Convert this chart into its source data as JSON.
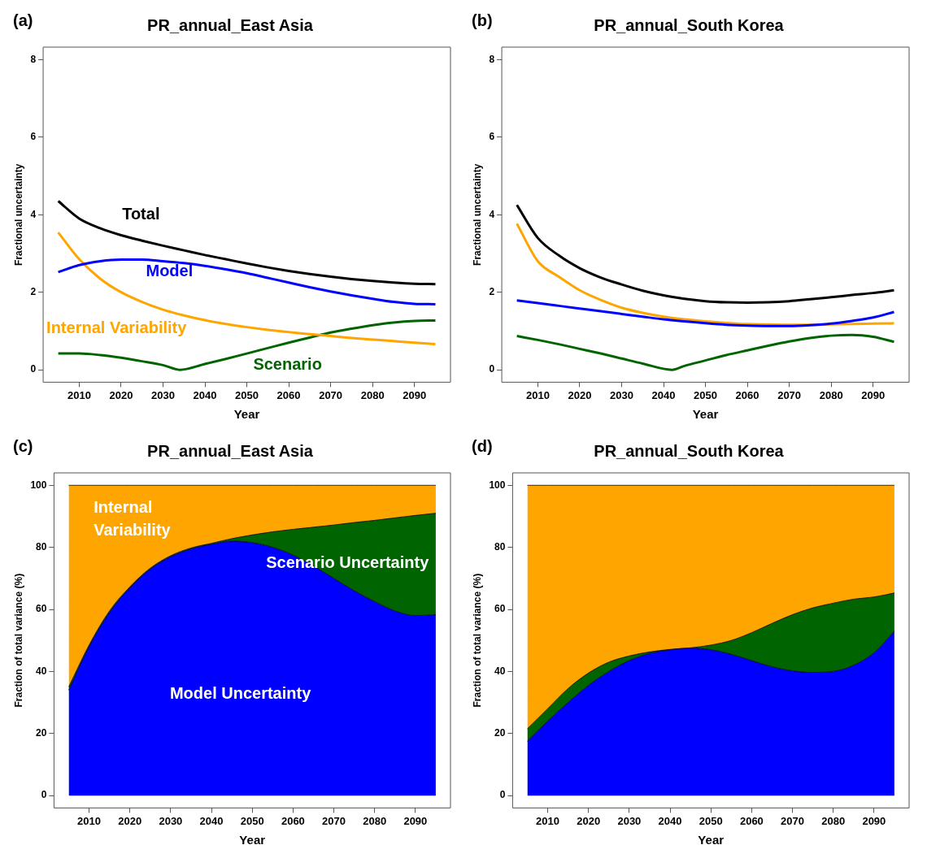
{
  "chart_data": [
    {
      "type": "line",
      "title": "PR_annual_East Asia",
      "annotations": [
        "(a)"
      ],
      "xlabel": "Year",
      "ylabel": "Fractional uncertainty",
      "x": [
        2005,
        2010,
        2015,
        2020,
        2025,
        2030,
        2035,
        2040,
        2045,
        2050,
        2055,
        2060,
        2065,
        2070,
        2075,
        2080,
        2085,
        2090,
        2095
      ],
      "xlim": [
        2001.4,
        2098.6
      ],
      "xticks": [
        2010,
        2020,
        2030,
        2040,
        2050,
        2060,
        2070,
        2080,
        2090
      ],
      "ylim": [
        -0.32,
        8.32
      ],
      "yticks": [
        0,
        2,
        4,
        6,
        8
      ],
      "grid": false,
      "legend": false,
      "series": [
        {
          "name": "Total",
          "color": "#000000",
          "values": [
            4.35,
            3.9,
            3.65,
            3.47,
            3.33,
            3.2,
            3.08,
            2.96,
            2.85,
            2.74,
            2.64,
            2.55,
            2.47,
            2.4,
            2.34,
            2.29,
            2.25,
            2.22,
            2.21
          ]
        },
        {
          "name": "Model",
          "color": "#0000ff",
          "values": [
            2.52,
            2.7,
            2.8,
            2.84,
            2.84,
            2.8,
            2.75,
            2.68,
            2.59,
            2.49,
            2.37,
            2.25,
            2.13,
            2.02,
            1.92,
            1.83,
            1.75,
            1.7,
            1.69
          ]
        },
        {
          "name": "Internal Variability",
          "color": "#ffa500",
          "values": [
            3.54,
            2.85,
            2.35,
            2.0,
            1.75,
            1.55,
            1.4,
            1.28,
            1.18,
            1.1,
            1.03,
            0.97,
            0.92,
            0.87,
            0.82,
            0.78,
            0.74,
            0.7,
            0.66
          ]
        },
        {
          "name": "Scenario",
          "color": "#006400",
          "x": [
            2005,
            2010,
            2015,
            2020,
            2025,
            2030,
            2034,
            2040,
            2045,
            2050,
            2055,
            2060,
            2065,
            2070,
            2075,
            2080,
            2085,
            2090,
            2095
          ],
          "values": [
            0.42,
            0.42,
            0.38,
            0.31,
            0.22,
            0.12,
            0,
            0.15,
            0.28,
            0.42,
            0.56,
            0.7,
            0.83,
            0.96,
            1.06,
            1.15,
            1.22,
            1.26,
            1.27
          ]
        }
      ]
    },
    {
      "type": "line",
      "title": "PR_annual_South Korea",
      "annotations": [
        "(b)"
      ],
      "xlabel": "Year",
      "ylabel": "Fractional uncertainty",
      "x": [
        2005,
        2010,
        2015,
        2020,
        2025,
        2030,
        2035,
        2040,
        2045,
        2050,
        2055,
        2060,
        2065,
        2070,
        2075,
        2080,
        2085,
        2090,
        2095
      ],
      "xlim": [
        2001.4,
        2098.6
      ],
      "xticks": [
        2010,
        2020,
        2030,
        2040,
        2050,
        2060,
        2070,
        2080,
        2090
      ],
      "ylim": [
        -0.32,
        8.32
      ],
      "yticks": [
        0,
        2,
        4,
        6,
        8
      ],
      "grid": false,
      "legend": false,
      "series": [
        {
          "color": "#000000",
          "values": [
            4.25,
            3.4,
            2.95,
            2.62,
            2.38,
            2.2,
            2.04,
            1.92,
            1.83,
            1.77,
            1.74,
            1.73,
            1.74,
            1.77,
            1.82,
            1.87,
            1.93,
            1.98,
            2.05
          ]
        },
        {
          "color": "#0000ff",
          "values": [
            1.79,
            1.72,
            1.65,
            1.58,
            1.51,
            1.44,
            1.37,
            1.3,
            1.25,
            1.2,
            1.16,
            1.14,
            1.13,
            1.13,
            1.15,
            1.19,
            1.26,
            1.35,
            1.49
          ]
        },
        {
          "color": "#ffa500",
          "values": [
            3.77,
            2.8,
            2.4,
            2.05,
            1.8,
            1.6,
            1.47,
            1.37,
            1.3,
            1.25,
            1.21,
            1.18,
            1.17,
            1.16,
            1.16,
            1.17,
            1.18,
            1.19,
            1.2
          ]
        },
        {
          "color": "#006400",
          "x": [
            2005,
            2010,
            2015,
            2020,
            2025,
            2030,
            2035,
            2042,
            2045,
            2050,
            2055,
            2060,
            2065,
            2070,
            2075,
            2080,
            2085,
            2090,
            2095
          ],
          "values": [
            0.87,
            0.77,
            0.66,
            0.54,
            0.42,
            0.29,
            0.16,
            0,
            0.1,
            0.24,
            0.38,
            0.5,
            0.62,
            0.73,
            0.82,
            0.88,
            0.9,
            0.85,
            0.72
          ]
        }
      ]
    },
    {
      "type": "area",
      "stacked": true,
      "title": "PR_annual_East Asia",
      "annotations": [
        "(c)"
      ],
      "xlabel": "Year",
      "ylabel": "Fraction of total variance (%)",
      "x": [
        2005,
        2010,
        2015,
        2020,
        2025,
        2030,
        2035,
        2040,
        2045,
        2050,
        2055,
        2060,
        2065,
        2070,
        2075,
        2080,
        2085,
        2090,
        2095
      ],
      "xlim": [
        2001.4,
        2098.6
      ],
      "xticks": [
        2010,
        2020,
        2030,
        2040,
        2050,
        2060,
        2070,
        2080,
        2090
      ],
      "ylim": [
        -4,
        104
      ],
      "yticks": [
        0,
        20,
        40,
        60,
        80,
        100
      ],
      "grid": false,
      "legend": false,
      "series": [
        {
          "name": "Model Uncertainty",
          "color": "#0000ff",
          "values": [
            34,
            48,
            59,
            67,
            73,
            77,
            79.5,
            81,
            82,
            81.5,
            80,
            77.5,
            74,
            70,
            66,
            62.5,
            59.5,
            58,
            58.3
          ]
        },
        {
          "name": "Scenario Uncertainty",
          "color": "#006400",
          "values": [
            1,
            0.5,
            0.5,
            0.3,
            0.3,
            0.3,
            0.3,
            0.3,
            0.8,
            2.5,
            5,
            8.3,
            12.5,
            17.2,
            22,
            26.2,
            30,
            32.3,
            32.7
          ]
        },
        {
          "name": "Internal Variability",
          "color": "#ffa500",
          "values": [
            65,
            51.5,
            40.5,
            32.7,
            26.7,
            22.7,
            20.2,
            18.7,
            17.2,
            16,
            15,
            14.2,
            13.5,
            12.8,
            12,
            11.3,
            10.5,
            9.7,
            9
          ]
        }
      ]
    },
    {
      "type": "area",
      "stacked": true,
      "title": "PR_annual_South Korea",
      "annotations": [
        "(d)"
      ],
      "xlabel": "Year",
      "ylabel": "Fraction of total variance (%)",
      "x": [
        2005,
        2010,
        2015,
        2020,
        2025,
        2030,
        2035,
        2040,
        2045,
        2050,
        2055,
        2060,
        2065,
        2070,
        2075,
        2080,
        2085,
        2090,
        2095
      ],
      "xlim": [
        2001.4,
        2098.6
      ],
      "xticks": [
        2010,
        2020,
        2030,
        2040,
        2050,
        2060,
        2070,
        2080,
        2090
      ],
      "ylim": [
        -4,
        104
      ],
      "yticks": [
        0,
        20,
        40,
        60,
        80,
        100
      ],
      "grid": false,
      "legend": false,
      "series": [
        {
          "color": "#0000ff",
          "values": [
            17.5,
            24,
            30,
            35.5,
            40,
            43.5,
            45.8,
            47,
            47.5,
            47,
            45.5,
            43.5,
            41.5,
            40.2,
            39.7,
            40,
            42,
            46,
            53
          ]
        },
        {
          "color": "#006400",
          "values": [
            4,
            4,
            4.5,
            4,
            3,
            1.5,
            0.5,
            0.1,
            0.1,
            1.5,
            4.5,
            9,
            14,
            18.1,
            20.8,
            22,
            21.3,
            18,
            12.3
          ]
        },
        {
          "color": "#ffa500",
          "values": [
            78.5,
            72,
            65.5,
            60.5,
            57,
            55,
            53.7,
            52.9,
            52.4,
            51.5,
            50,
            47.5,
            44.5,
            41.7,
            39.5,
            38,
            36.7,
            36,
            34.7
          ]
        }
      ]
    }
  ]
}
